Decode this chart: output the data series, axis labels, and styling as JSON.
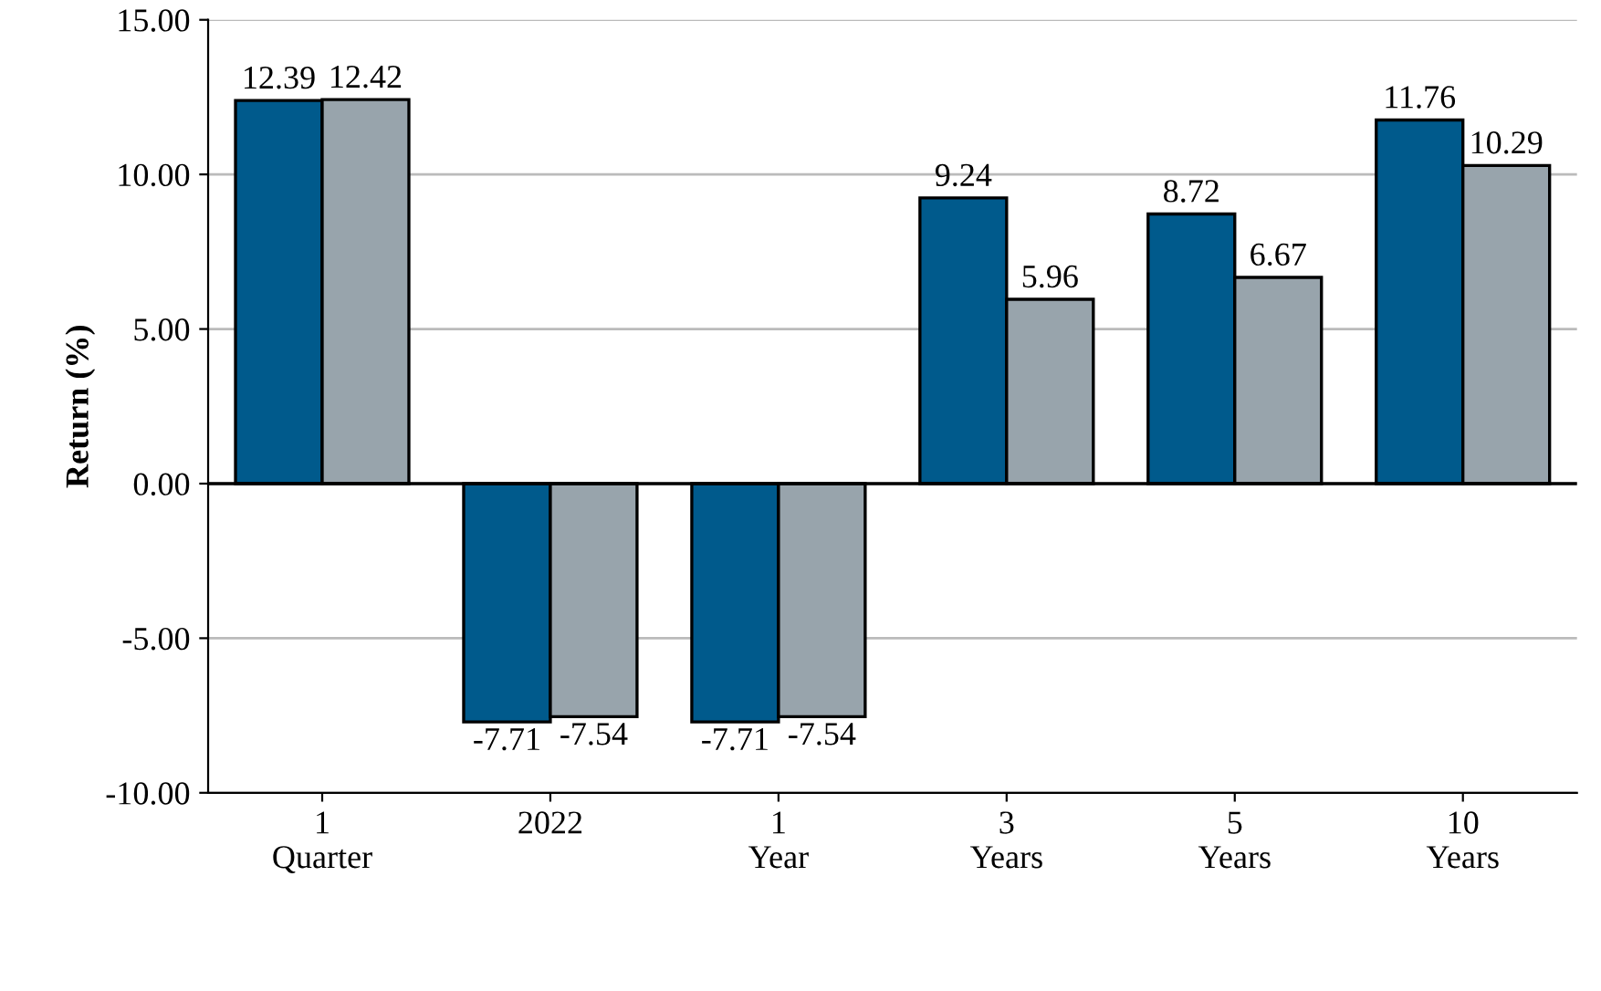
{
  "chart_data": {
    "type": "bar",
    "ylabel": "Return (%)",
    "categories": [
      "1\nQuarter",
      "2022",
      "1\nYear",
      "3\nYears",
      "5\nYears",
      "10\nYears"
    ],
    "series": [
      {
        "color": "#005a8c",
        "values": [
          12.39,
          -7.71,
          -7.71,
          9.24,
          8.72,
          11.76
        ]
      },
      {
        "color": "#98a4ac",
        "values": [
          12.42,
          -7.54,
          -7.54,
          5.96,
          6.67,
          10.29
        ]
      }
    ],
    "ylim": [
      -10,
      15
    ],
    "yticks": [
      {
        "value": -10,
        "label": "-10.00"
      },
      {
        "value": -5,
        "label": "-5.00"
      },
      {
        "value": 0,
        "label": "0.00"
      },
      {
        "value": 5,
        "label": "5.00"
      },
      {
        "value": 10,
        "label": "10.00"
      },
      {
        "value": 15,
        "label": "15.00"
      }
    ],
    "grid": "y",
    "data_labels": true
  }
}
